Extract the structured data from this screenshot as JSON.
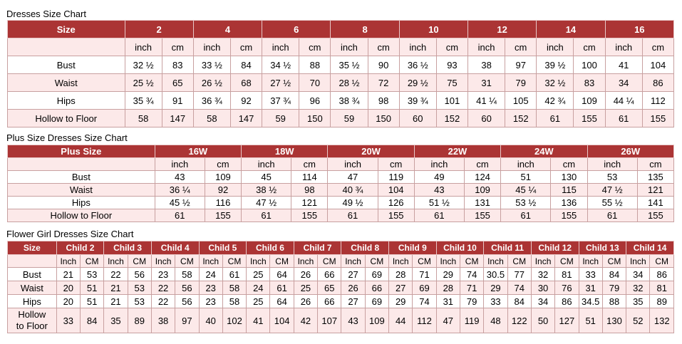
{
  "sections": [
    {
      "title": "Dresses Size Chart",
      "header_label": "Size",
      "sizes": [
        "2",
        "4",
        "6",
        "8",
        "10",
        "12",
        "14",
        "16"
      ],
      "units": [
        "inch",
        "cm"
      ],
      "rows": [
        {
          "label": "Bust",
          "values": [
            "32 ½",
            "83",
            "33 ½",
            "84",
            "34 ½",
            "88",
            "35 ½",
            "90",
            "36 ½",
            "93",
            "38",
            "97",
            "39 ½",
            "100",
            "41",
            "104"
          ]
        },
        {
          "label": "Waist",
          "values": [
            "25 ½",
            "65",
            "26 ½",
            "68",
            "27 ½",
            "70",
            "28 ½",
            "72",
            "29 ½",
            "75",
            "31",
            "79",
            "32 ½",
            "83",
            "34",
            "86"
          ]
        },
        {
          "label": "Hips",
          "values": [
            "35 ¾",
            "91",
            "36 ¾",
            "92",
            "37 ¾",
            "96",
            "38 ¾",
            "98",
            "39 ¾",
            "101",
            "41 ¼",
            "105",
            "42 ¾",
            "109",
            "44 ¼",
            "112"
          ]
        },
        {
          "label": "Hollow to Floor",
          "values": [
            "58",
            "147",
            "58",
            "147",
            "59",
            "150",
            "59",
            "150",
            "60",
            "152",
            "60",
            "152",
            "61",
            "155",
            "61",
            "155"
          ]
        }
      ]
    },
    {
      "title": "Plus Size Dresses Size Chart",
      "header_label": "Plus Size",
      "sizes": [
        "16W",
        "18W",
        "20W",
        "22W",
        "24W",
        "26W"
      ],
      "units": [
        "inch",
        "cm"
      ],
      "rows": [
        {
          "label": "Bust",
          "values": [
            "43",
            "109",
            "45",
            "114",
            "47",
            "119",
            "49",
            "124",
            "51",
            "130",
            "53",
            "135"
          ]
        },
        {
          "label": "Waist",
          "values": [
            "36 ¼",
            "92",
            "38 ½",
            "98",
            "40 ¾",
            "104",
            "43",
            "109",
            "45 ¼",
            "115",
            "47 ½",
            "121"
          ]
        },
        {
          "label": "Hips",
          "values": [
            "45 ½",
            "116",
            "47 ½",
            "121",
            "49 ½",
            "126",
            "51 ½",
            "131",
            "53 ½",
            "136",
            "55 ½",
            "141"
          ]
        },
        {
          "label": "Hollow to Floor",
          "values": [
            "61",
            "155",
            "61",
            "155",
            "61",
            "155",
            "61",
            "155",
            "61",
            "155",
            "61",
            "155"
          ]
        }
      ]
    },
    {
      "title": "Flower Girl Dresses Size Chart",
      "header_label": "Size",
      "sizes": [
        "Child 2",
        "Child 3",
        "Child 4",
        "Child 5",
        "Child 6",
        "Child 7",
        "Child 8",
        "Child 9",
        "Child 10",
        "Child 11",
        "Child 12",
        "Child 13",
        "Child 14"
      ],
      "units": [
        "Inch",
        "CM"
      ],
      "rows": [
        {
          "label": "Bust",
          "values": [
            "21",
            "53",
            "22",
            "56",
            "23",
            "58",
            "24",
            "61",
            "25",
            "64",
            "26",
            "66",
            "27",
            "69",
            "28",
            "71",
            "29",
            "74",
            "30.5",
            "77",
            "32",
            "81",
            "33",
            "84",
            "34",
            "86"
          ]
        },
        {
          "label": "Waist",
          "values": [
            "20",
            "51",
            "21",
            "53",
            "22",
            "56",
            "23",
            "58",
            "24",
            "61",
            "25",
            "65",
            "26",
            "66",
            "27",
            "69",
            "28",
            "71",
            "29",
            "74",
            "30",
            "76",
            "31",
            "79",
            "32",
            "81"
          ]
        },
        {
          "label": "Hips",
          "values": [
            "20",
            "51",
            "21",
            "53",
            "22",
            "56",
            "23",
            "58",
            "25",
            "64",
            "26",
            "66",
            "27",
            "69",
            "29",
            "74",
            "31",
            "79",
            "33",
            "84",
            "34",
            "86",
            "34.5",
            "88",
            "35",
            "89"
          ]
        },
        {
          "label": "Hollow to Floor",
          "label_lines": [
            "Hollow",
            "to Floor"
          ],
          "values": [
            "33",
            "84",
            "35",
            "89",
            "38",
            "97",
            "40",
            "102",
            "41",
            "104",
            "42",
            "107",
            "43",
            "109",
            "44",
            "112",
            "47",
            "119",
            "48",
            "122",
            "50",
            "127",
            "51",
            "130",
            "52",
            "132"
          ]
        }
      ]
    }
  ],
  "colors": {
    "header_bg": "#ab3434",
    "header_text": "#ffffff",
    "pink_row": "#fce9e9",
    "border": "#c8a0a0"
  }
}
